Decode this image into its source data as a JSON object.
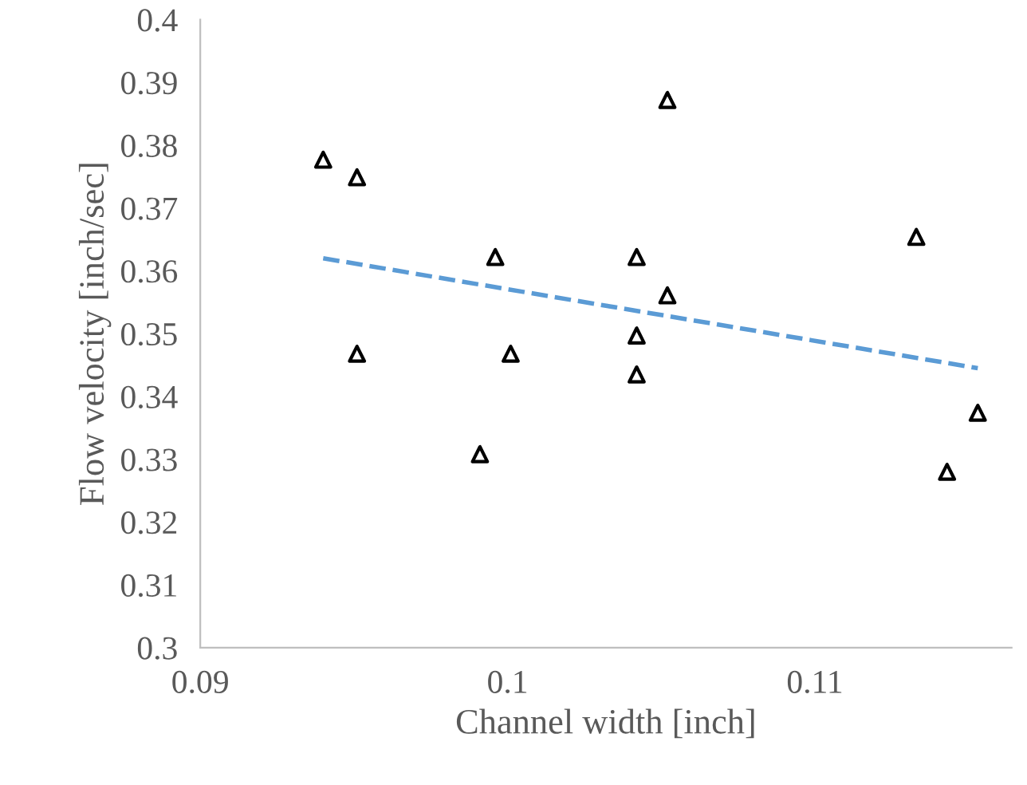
{
  "chart_data": {
    "type": "scatter",
    "xlabel": "Channel width [inch]",
    "ylabel": "Flow velocity [inch/sec]",
    "xlim": [
      0.09,
      0.1164
    ],
    "xticks": [
      0.09,
      0.1,
      0.11
    ],
    "ylim": [
      0.3,
      0.4
    ],
    "yticks": [
      0.3,
      0.31,
      0.32,
      0.33,
      0.34,
      0.35,
      0.36,
      0.37,
      0.38,
      0.39,
      0.4
    ],
    "grid": false,
    "legend": false,
    "series": [
      {
        "color": "#000000",
        "marker": "triangle",
        "x": [
          0.094,
          0.0951,
          0.0951,
          0.0996,
          0.1001,
          0.0991,
          0.1042,
          0.1042,
          0.1042,
          0.1052,
          0.1052,
          0.1133,
          0.1143,
          0.1153
        ],
        "values": [
          0.3777,
          0.3749,
          0.3468,
          0.3622,
          0.3468,
          0.3308,
          0.3622,
          0.3497,
          0.3435,
          0.3872,
          0.3561,
          0.3654,
          0.328,
          0.3374
        ]
      },
      {
        "type": "line",
        "color": "#5b9bd5",
        "line_style": "dashed",
        "marker": "none",
        "x": [
          0.094,
          0.1153
        ],
        "values": [
          0.362,
          0.3445
        ]
      }
    ]
  }
}
